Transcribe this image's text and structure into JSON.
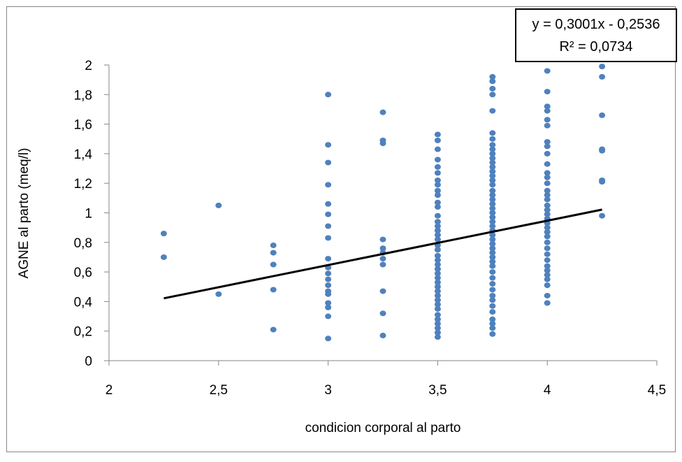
{
  "chart_data": {
    "type": "scatter",
    "xlabel": "condicion corporal al parto",
    "ylabel": "AGNE al parto (meq/l)",
    "xlim": [
      2,
      4.5
    ],
    "ylim": [
      0,
      2
    ],
    "x_ticks": [
      {
        "value": 2,
        "label": "2"
      },
      {
        "value": 2.5,
        "label": "2,5"
      },
      {
        "value": 3,
        "label": "3"
      },
      {
        "value": 3.5,
        "label": "3,5"
      },
      {
        "value": 4,
        "label": "4"
      },
      {
        "value": 4.5,
        "label": "4,5"
      }
    ],
    "y_ticks": [
      {
        "value": 0,
        "label": "0"
      },
      {
        "value": 0.2,
        "label": "0,2"
      },
      {
        "value": 0.4,
        "label": "0,4"
      },
      {
        "value": 0.6,
        "label": "0,6"
      },
      {
        "value": 0.8,
        "label": "0,8"
      },
      {
        "value": 1,
        "label": "1"
      },
      {
        "value": 1.2,
        "label": "1,2"
      },
      {
        "value": 1.4,
        "label": "1,4"
      },
      {
        "value": 1.6,
        "label": "1,6"
      },
      {
        "value": 1.8,
        "label": "1,8"
      },
      {
        "value": 2,
        "label": "2"
      }
    ],
    "grid": false,
    "legend": "none",
    "point_color": "#4F81BD",
    "trendline_color": "#000000",
    "series": [
      {
        "points": [
          [
            2.25,
            0.86
          ],
          [
            2.25,
            0.7
          ],
          [
            2.5,
            1.05
          ],
          [
            2.5,
            0.45
          ],
          [
            2.75,
            0.78
          ],
          [
            2.75,
            0.73
          ],
          [
            2.75,
            0.65
          ],
          [
            2.75,
            0.48
          ],
          [
            2.75,
            0.21
          ],
          [
            3,
            1.8
          ],
          [
            3,
            1.46
          ],
          [
            3,
            1.34
          ],
          [
            3,
            1.19
          ],
          [
            3,
            1.06
          ],
          [
            3,
            0.99
          ],
          [
            3,
            0.91
          ],
          [
            3,
            0.83
          ],
          [
            3,
            0.69
          ],
          [
            3,
            0.63
          ],
          [
            3,
            0.59
          ],
          [
            3,
            0.55
          ],
          [
            3,
            0.51
          ],
          [
            3,
            0.47
          ],
          [
            3,
            0.45
          ],
          [
            3,
            0.39
          ],
          [
            3,
            0.36
          ],
          [
            3,
            0.3
          ],
          [
            3,
            0.15
          ],
          [
            3.25,
            1.68
          ],
          [
            3.25,
            1.49
          ],
          [
            3.25,
            1.47
          ],
          [
            3.25,
            0.82
          ],
          [
            3.25,
            0.76
          ],
          [
            3.25,
            0.73
          ],
          [
            3.25,
            0.69
          ],
          [
            3.25,
            0.65
          ],
          [
            3.25,
            0.47
          ],
          [
            3.25,
            0.32
          ],
          [
            3.25,
            0.17
          ],
          [
            3.5,
            1.53
          ],
          [
            3.5,
            1.49
          ],
          [
            3.5,
            1.43
          ],
          [
            3.5,
            1.36
          ],
          [
            3.5,
            1.31
          ],
          [
            3.5,
            1.27
          ],
          [
            3.5,
            1.22
          ],
          [
            3.5,
            1.19
          ],
          [
            3.5,
            1.15
          ],
          [
            3.5,
            1.12
          ],
          [
            3.5,
            1.07
          ],
          [
            3.5,
            1.04
          ],
          [
            3.5,
            0.98
          ],
          [
            3.5,
            0.94
          ],
          [
            3.5,
            0.91
          ],
          [
            3.5,
            0.88
          ],
          [
            3.5,
            0.85
          ],
          [
            3.5,
            0.82
          ],
          [
            3.5,
            0.78
          ],
          [
            3.5,
            0.75
          ],
          [
            3.5,
            0.71
          ],
          [
            3.5,
            0.68
          ],
          [
            3.5,
            0.65
          ],
          [
            3.5,
            0.62
          ],
          [
            3.5,
            0.59
          ],
          [
            3.5,
            0.56
          ],
          [
            3.5,
            0.53
          ],
          [
            3.5,
            0.5
          ],
          [
            3.5,
            0.47
          ],
          [
            3.5,
            0.44
          ],
          [
            3.5,
            0.41
          ],
          [
            3.5,
            0.38
          ],
          [
            3.5,
            0.35
          ],
          [
            3.5,
            0.31
          ],
          [
            3.5,
            0.28
          ],
          [
            3.5,
            0.25
          ],
          [
            3.5,
            0.22
          ],
          [
            3.5,
            0.19
          ],
          [
            3.5,
            0.16
          ],
          [
            3.75,
            1.92
          ],
          [
            3.75,
            1.89
          ],
          [
            3.75,
            1.84
          ],
          [
            3.75,
            1.8
          ],
          [
            3.75,
            1.69
          ],
          [
            3.75,
            1.54
          ],
          [
            3.75,
            1.5
          ],
          [
            3.75,
            1.46
          ],
          [
            3.75,
            1.43
          ],
          [
            3.75,
            1.4
          ],
          [
            3.75,
            1.37
          ],
          [
            3.75,
            1.34
          ],
          [
            3.75,
            1.31
          ],
          [
            3.75,
            1.28
          ],
          [
            3.75,
            1.25
          ],
          [
            3.75,
            1.22
          ],
          [
            3.75,
            1.19
          ],
          [
            3.75,
            1.15
          ],
          [
            3.75,
            1.12
          ],
          [
            3.75,
            1.09
          ],
          [
            3.75,
            1.06
          ],
          [
            3.75,
            1.03
          ],
          [
            3.75,
            1.0
          ],
          [
            3.75,
            0.97
          ],
          [
            3.75,
            0.94
          ],
          [
            3.75,
            0.91
          ],
          [
            3.75,
            0.88
          ],
          [
            3.75,
            0.85
          ],
          [
            3.75,
            0.82
          ],
          [
            3.75,
            0.79
          ],
          [
            3.75,
            0.76
          ],
          [
            3.75,
            0.73
          ],
          [
            3.75,
            0.7
          ],
          [
            3.75,
            0.67
          ],
          [
            3.75,
            0.64
          ],
          [
            3.75,
            0.6
          ],
          [
            3.75,
            0.56
          ],
          [
            3.75,
            0.52
          ],
          [
            3.75,
            0.48
          ],
          [
            3.75,
            0.44
          ],
          [
            3.75,
            0.41
          ],
          [
            3.75,
            0.37
          ],
          [
            3.75,
            0.33
          ],
          [
            3.75,
            0.28
          ],
          [
            3.75,
            0.25
          ],
          [
            3.75,
            0.22
          ],
          [
            3.75,
            0.18
          ],
          [
            4,
            1.96
          ],
          [
            4,
            1.82
          ],
          [
            4,
            1.72
          ],
          [
            4,
            1.69
          ],
          [
            4,
            1.63
          ],
          [
            4,
            1.59
          ],
          [
            4,
            1.48
          ],
          [
            4,
            1.45
          ],
          [
            4,
            1.4
          ],
          [
            4,
            1.33
          ],
          [
            4,
            1.27
          ],
          [
            4,
            1.24
          ],
          [
            4,
            1.2
          ],
          [
            4,
            1.15
          ],
          [
            4,
            1.12
          ],
          [
            4,
            1.09
          ],
          [
            4,
            1.05
          ],
          [
            4,
            1.02
          ],
          [
            4,
            0.99
          ],
          [
            4,
            0.96
          ],
          [
            4,
            0.93
          ],
          [
            4,
            0.9
          ],
          [
            4,
            0.87
          ],
          [
            4,
            0.84
          ],
          [
            4,
            0.8
          ],
          [
            4,
            0.76
          ],
          [
            4,
            0.72
          ],
          [
            4,
            0.68
          ],
          [
            4,
            0.64
          ],
          [
            4,
            0.61
          ],
          [
            4,
            0.58
          ],
          [
            4,
            0.55
          ],
          [
            4,
            0.51
          ],
          [
            4,
            0.44
          ],
          [
            4,
            0.39
          ],
          [
            4.25,
            1.99
          ],
          [
            4.25,
            1.92
          ],
          [
            4.25,
            1.66
          ],
          [
            4.25,
            1.43
          ],
          [
            4.25,
            1.42
          ],
          [
            4.25,
            1.22
          ],
          [
            4.25,
            1.21
          ],
          [
            4.25,
            0.98
          ]
        ]
      }
    ],
    "trendline": {
      "slope": 0.3001,
      "intercept": -0.2536,
      "x_range": [
        2.25,
        4.25
      ],
      "equation": "y = 0,3001x - 0,2536",
      "r_squared": "R² = 0,0734"
    }
  }
}
